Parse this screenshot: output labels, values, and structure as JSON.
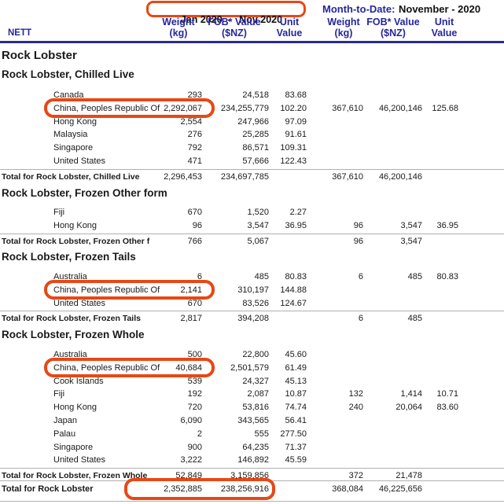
{
  "header": {
    "period": "Jan 2020  -   Nov 2020",
    "mtd_label": "Month-to-Date:",
    "mtd_period": "November - 2020",
    "nett": "NETT",
    "cols": {
      "weight": "Weight",
      "weight_sub": "(kg)",
      "fob": "FOB* Value",
      "fob_sub": "($NZ)",
      "unit": "Unit",
      "unit_sub": "Value"
    }
  },
  "title": "Rock Lobster",
  "colors": {
    "highlight_orange": "#e74816",
    "header_blue": "#26269c"
  },
  "sections": [
    {
      "heading": "Rock Lobster, Chilled Live",
      "rows": [
        {
          "country": "Canada",
          "values": [
            "293",
            "24,518",
            "83.68",
            "",
            "",
            ""
          ]
        },
        {
          "country": "China, Peoples Republic Of",
          "values": [
            "2,292,067",
            "234,255,779",
            "102.20",
            "367,610",
            "46,200,146",
            "125.68"
          ],
          "highlight": true
        },
        {
          "country": "Hong Kong",
          "values": [
            "2,554",
            "247,966",
            "97.09",
            "",
            "",
            ""
          ]
        },
        {
          "country": "Malaysia",
          "values": [
            "276",
            "25,285",
            "91.61",
            "",
            "",
            ""
          ]
        },
        {
          "country": "Singapore",
          "values": [
            "792",
            "86,571",
            "109.31",
            "",
            "",
            ""
          ]
        },
        {
          "country": "United States",
          "values": [
            "471",
            "57,666",
            "122.43",
            "",
            "",
            ""
          ]
        }
      ],
      "total": {
        "label": "Total for Rock Lobster, Chilled Live",
        "values": [
          "2,296,453",
          "234,697,785",
          "",
          "367,610",
          "46,200,146",
          ""
        ]
      }
    },
    {
      "heading": "Rock Lobster, Frozen Other form",
      "rows": [
        {
          "country": "Fiji",
          "values": [
            "670",
            "1,520",
            "2.27",
            "",
            "",
            ""
          ]
        },
        {
          "country": "Hong Kong",
          "values": [
            "96",
            "3,547",
            "36.95",
            "96",
            "3,547",
            "36.95"
          ]
        }
      ],
      "total": {
        "label": "Total for Rock Lobster, Frozen Other f",
        "values": [
          "766",
          "5,067",
          "",
          "96",
          "3,547",
          ""
        ]
      }
    },
    {
      "heading": "Rock Lobster, Frozen Tails",
      "rows": [
        {
          "country": "Australia",
          "values": [
            "6",
            "485",
            "80.83",
            "6",
            "485",
            "80.83"
          ]
        },
        {
          "country": "China, Peoples Republic Of",
          "values": [
            "2,141",
            "310,197",
            "144.88",
            "",
            "",
            ""
          ],
          "highlight": true
        },
        {
          "country": "United States",
          "values": [
            "670",
            "83,526",
            "124.67",
            "",
            "",
            ""
          ]
        }
      ],
      "total": {
        "label": "Total for Rock Lobster, Frozen Tails",
        "values": [
          "2,817",
          "394,208",
          "",
          "6",
          "485",
          ""
        ]
      }
    },
    {
      "heading": "Rock Lobster, Frozen Whole",
      "rows": [
        {
          "country": "Australia",
          "values": [
            "500",
            "22,800",
            "45.60",
            "",
            "",
            ""
          ]
        },
        {
          "country": "China, Peoples Republic Of",
          "values": [
            "40,684",
            "2,501,579",
            "61.49",
            "",
            "",
            ""
          ],
          "highlight": true
        },
        {
          "country": "Cook Islands",
          "values": [
            "539",
            "24,327",
            "45.13",
            "",
            "",
            ""
          ]
        },
        {
          "country": "Fiji",
          "values": [
            "192",
            "2,087",
            "10.87",
            "132",
            "1,414",
            "10.71"
          ]
        },
        {
          "country": "Hong Kong",
          "values": [
            "720",
            "53,816",
            "74.74",
            "240",
            "20,064",
            "83.60"
          ]
        },
        {
          "country": "Japan",
          "values": [
            "6,090",
            "343,565",
            "56.41",
            "",
            "",
            ""
          ]
        },
        {
          "country": "Palau",
          "values": [
            "2",
            "555",
            "277.50",
            "",
            "",
            ""
          ]
        },
        {
          "country": "Singapore",
          "values": [
            "900",
            "64,235",
            "71.37",
            "",
            "",
            ""
          ]
        },
        {
          "country": "United States",
          "values": [
            "3,222",
            "146,892",
            "45.59",
            "",
            "",
            ""
          ]
        }
      ],
      "total": {
        "label": "Total for Rock Lobster, Frozen Whole",
        "values": [
          "52,849",
          "3,159,856",
          "",
          "372",
          "21,478",
          ""
        ]
      }
    }
  ],
  "grand_total": {
    "label": "Total for Rock Lobster",
    "values": [
      "2,352,885",
      "238,256,916",
      "",
      "368,084",
      "46,225,656",
      ""
    ],
    "highlight": true
  }
}
